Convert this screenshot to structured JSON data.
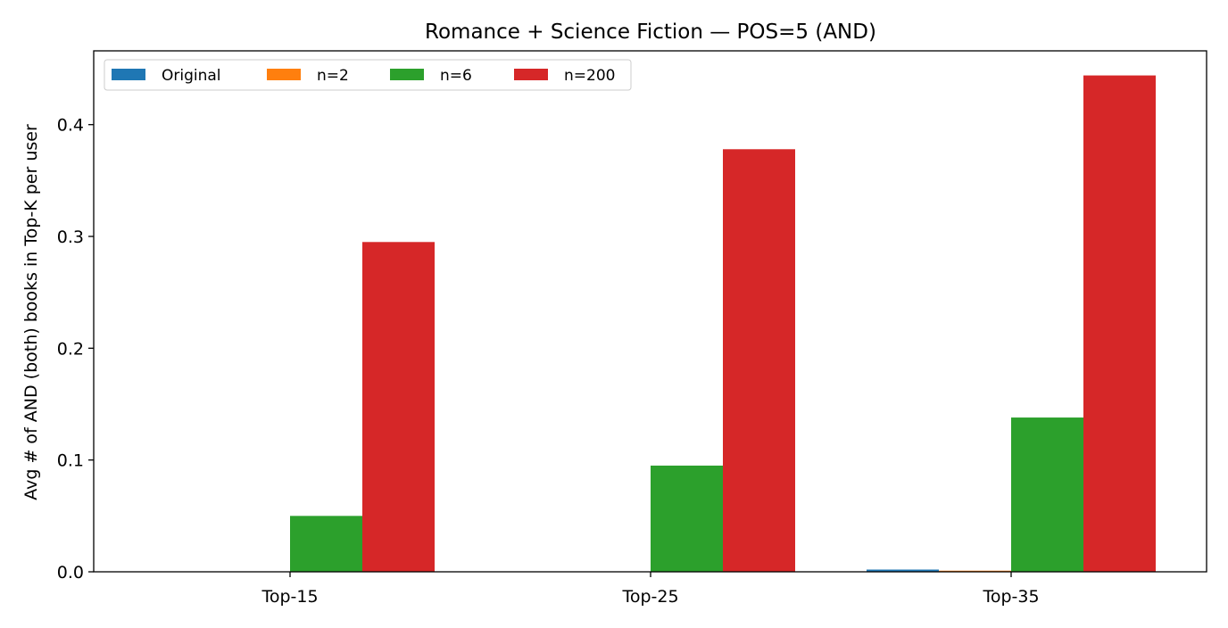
{
  "chart_data": {
    "type": "bar",
    "title": "Romance + Science Fiction — POS=5 (AND)",
    "xlabel": "",
    "ylabel": "Avg # of AND (both) books in Top-K per user",
    "categories": [
      "Top-15",
      "Top-25",
      "Top-35"
    ],
    "series": [
      {
        "name": "Original",
        "color": "#1f77b4",
        "values": [
          0.0,
          0.0,
          0.002
        ]
      },
      {
        "name": "n=2",
        "color": "#ff7f0e",
        "values": [
          0.0,
          0.0,
          0.001
        ]
      },
      {
        "name": "n=6",
        "color": "#2ca02c",
        "values": [
          0.05,
          0.095,
          0.138
        ]
      },
      {
        "name": "n=200",
        "color": "#d62728",
        "values": [
          0.295,
          0.378,
          0.444
        ]
      }
    ],
    "ylim": [
      0,
      0.466
    ],
    "yticks": [
      0.0,
      0.1,
      0.2,
      0.3,
      0.4
    ],
    "ytick_labels": [
      "0.0",
      "0.1",
      "0.2",
      "0.3",
      "0.4"
    ],
    "grid": false,
    "legend": {
      "placement": "top-left",
      "columns": 4
    }
  }
}
